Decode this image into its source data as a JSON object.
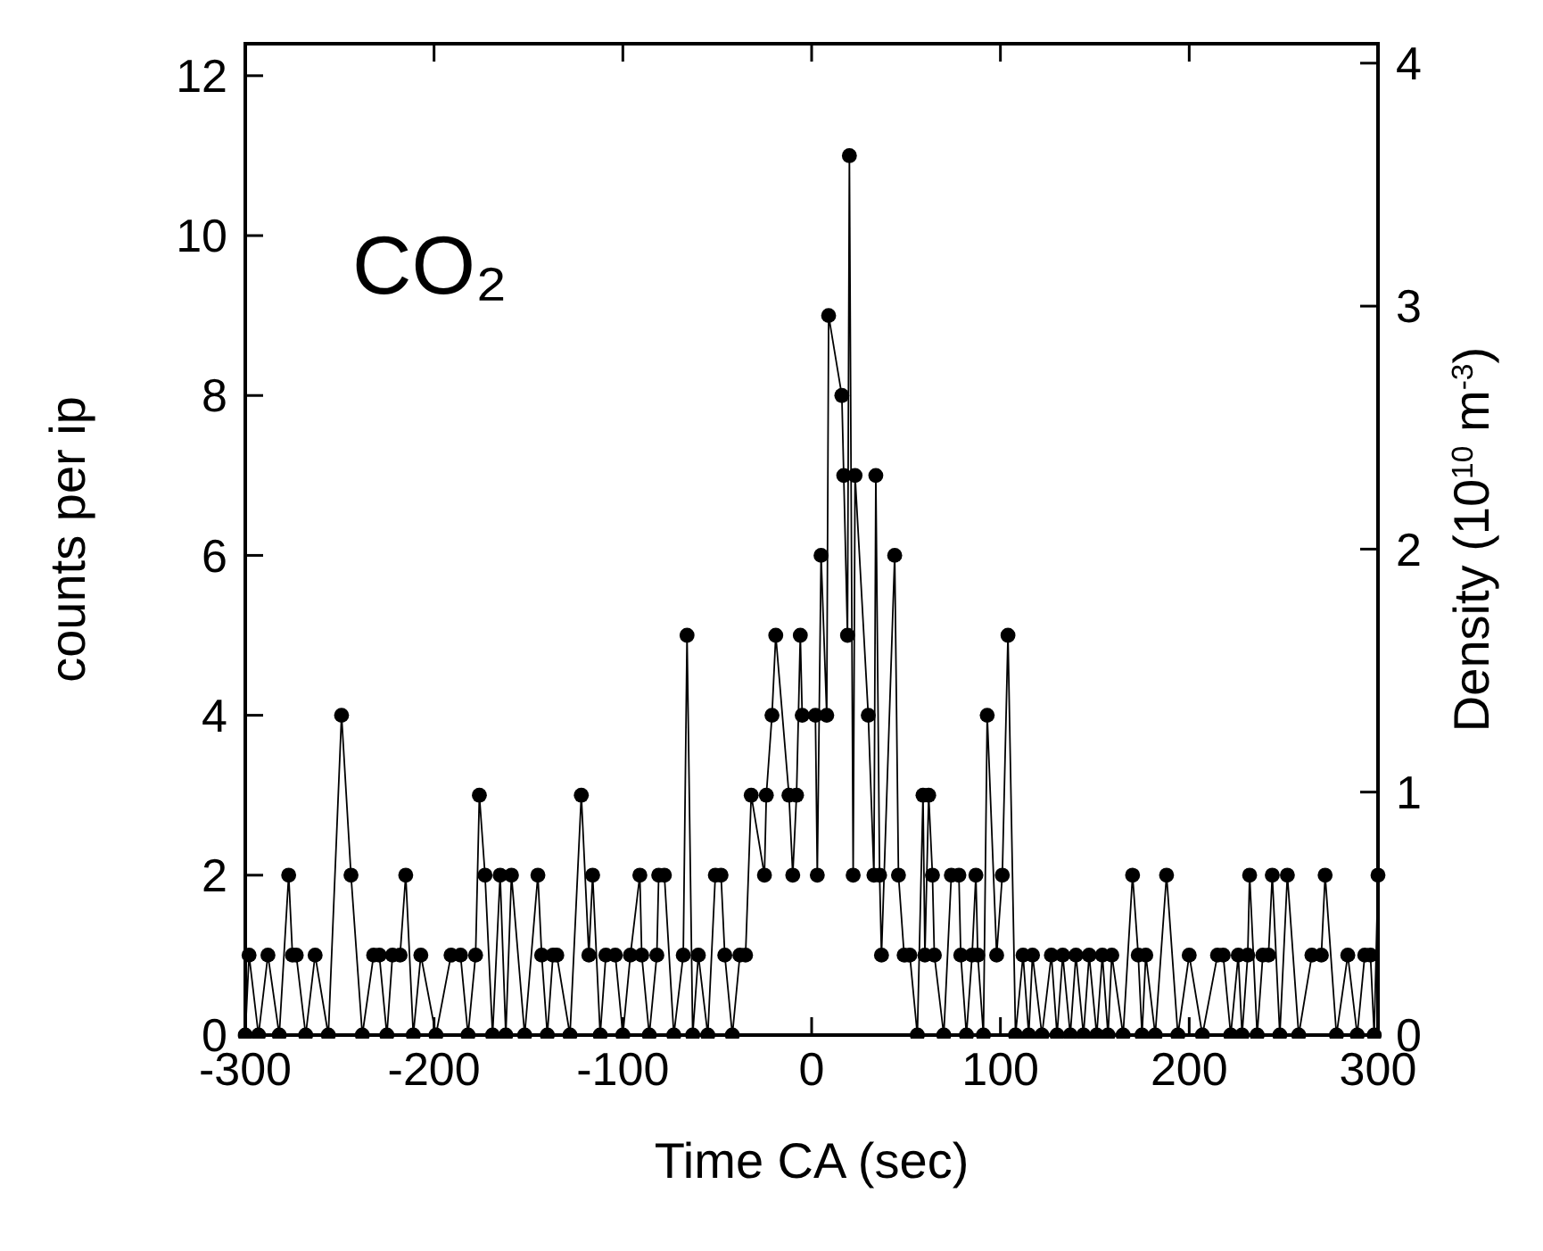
{
  "chart_data": {
    "type": "line",
    "xlabel": "Time CA (sec)",
    "ylabel": "counts per ip",
    "y2label": "Density (10$^{10}$ m$^{-3}$)",
    "annotations": [
      "CO₂"
    ],
    "marker": "circle",
    "line_style": "solid",
    "grid": false,
    "xlim": [
      -300,
      300
    ],
    "xticks": [
      -300,
      -200,
      -100,
      0,
      100,
      200,
      300
    ],
    "ylim": [
      0,
      12.4
    ],
    "yticks": [
      0,
      2,
      4,
      6,
      8,
      10,
      12
    ],
    "y2lim": [
      0,
      4.08
    ],
    "y2ticks": [
      0,
      1,
      2,
      3,
      4
    ],
    "series": [
      {
        "color": "#000000",
        "x": [
          -300,
          -298,
          -293,
          -288,
          -282,
          -277,
          -275,
          -273,
          -268,
          -263,
          -256,
          -249,
          -244,
          -238,
          -232,
          -229,
          -225,
          -222,
          -218,
          -215,
          -211,
          -207,
          -199,
          -191,
          -186,
          -182,
          -178,
          -176,
          -173,
          -169,
          -165,
          -162,
          -159,
          -152,
          -145,
          -143,
          -140,
          -137,
          -135,
          -128,
          -122,
          -118,
          -116,
          -112,
          -109,
          -104,
          -100,
          -96,
          -91,
          -90,
          -86,
          -82,
          -81,
          -78,
          -73,
          -68,
          -66,
          -63,
          -60,
          -55,
          -51,
          -48,
          -46,
          -42,
          -38,
          -35,
          -32,
          -25,
          -24,
          -21,
          -19,
          -12,
          -10,
          -8,
          -6,
          -5,
          2,
          3,
          5,
          8,
          9,
          16,
          17,
          19,
          20,
          22,
          23,
          30,
          33,
          34,
          36,
          37,
          44,
          46,
          49,
          52,
          56,
          59,
          60,
          62,
          64,
          65,
          70,
          74,
          78,
          79,
          82,
          85,
          87,
          88,
          91,
          93,
          98,
          101,
          104,
          108,
          112,
          115,
          117,
          122,
          127,
          130,
          133,
          137,
          140,
          144,
          147,
          151,
          154,
          157,
          159,
          165,
          170,
          173,
          175,
          177,
          182,
          188,
          194,
          200,
          207,
          215,
          218,
          222,
          226,
          228,
          231,
          232,
          236,
          239,
          242,
          244,
          248,
          252,
          258,
          265,
          270,
          272,
          278,
          284,
          289,
          293,
          296,
          298,
          300
        ],
        "values": [
          0,
          1,
          0,
          1,
          0,
          2,
          1,
          1,
          0,
          1,
          0,
          4,
          2,
          0,
          1,
          1,
          0,
          1,
          1,
          2,
          0,
          1,
          0,
          1,
          1,
          0,
          1,
          3,
          2,
          0,
          2,
          0,
          2,
          0,
          2,
          1,
          0,
          1,
          1,
          0,
          3,
          1,
          2,
          0,
          1,
          1,
          0,
          1,
          2,
          1,
          0,
          1,
          2,
          2,
          0,
          1,
          5,
          0,
          1,
          0,
          2,
          2,
          1,
          0,
          1,
          1,
          3,
          2,
          3,
          4,
          5,
          3,
          2,
          3,
          5,
          4,
          4,
          2,
          6,
          4,
          9,
          8,
          7,
          5,
          11,
          2,
          7,
          4,
          2,
          7,
          2,
          1,
          6,
          2,
          1,
          1,
          0,
          3,
          1,
          3,
          2,
          1,
          0,
          2,
          2,
          1,
          0,
          1,
          2,
          1,
          0,
          4,
          1,
          2,
          5,
          0,
          1,
          0,
          1,
          0,
          1,
          0,
          1,
          0,
          1,
          0,
          1,
          0,
          1,
          0,
          1,
          0,
          2,
          1,
          0,
          1,
          0,
          2,
          0,
          1,
          0,
          1,
          1,
          0,
          1,
          0,
          1,
          2,
          0,
          1,
          1,
          2,
          0,
          2,
          0,
          1,
          1,
          2,
          0,
          1,
          0,
          1,
          1,
          0,
          2
        ]
      }
    ]
  }
}
